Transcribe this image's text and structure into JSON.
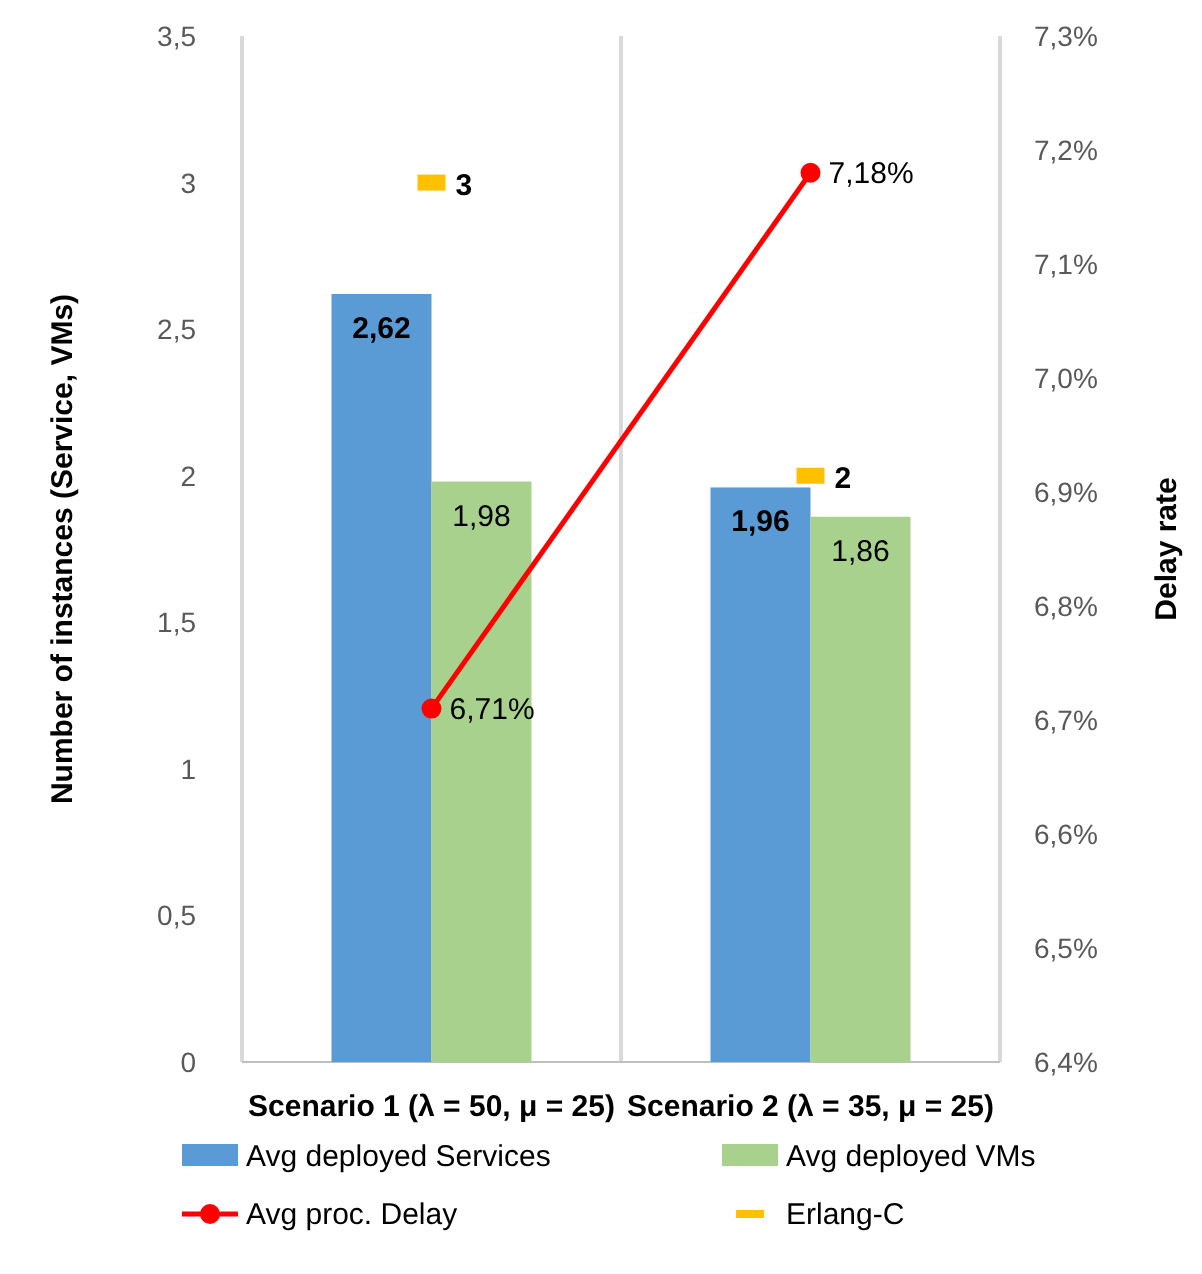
{
  "chart_data": {
    "type": "bar",
    "categories": [
      "Scenario 1 (λ = 50, μ = 25)",
      "Scenario 2 (λ = 35, μ = 25)"
    ],
    "ylabel": "Number of instances (Service, VMs)",
    "y2label": "Delay rate",
    "series": [
      {
        "name": "Avg deployed Services",
        "color": "#5b9bd5",
        "values": [
          2.62,
          1.96
        ],
        "value_labels": [
          "2,62",
          "1,96"
        ]
      },
      {
        "name": "Avg deployed VMs",
        "color": "#a9d18e",
        "values": [
          1.98,
          1.86
        ],
        "value_labels": [
          "1,98",
          "1,86"
        ]
      },
      {
        "name": "Avg proc. Delay",
        "type": "line",
        "axis": "y2",
        "color": "#ff0000",
        "marker": "circle",
        "values": [
          6.71,
          7.18
        ],
        "value_labels": [
          "6,71%",
          "7,18%"
        ]
      },
      {
        "name": "Erlang-C",
        "type": "scatter",
        "color": "#ffc000",
        "values": [
          3,
          2
        ],
        "value_labels": [
          "3",
          "2"
        ]
      }
    ],
    "ylim": [
      0,
      3.5
    ],
    "yticks": [
      0,
      {
        "value": 0.5,
        "label": "0,5"
      },
      1,
      {
        "value": 1.5,
        "label": "1,5"
      },
      2,
      {
        "value": 2.5,
        "label": "2,5"
      },
      3,
      {
        "value": 3.5,
        "label": "3,5"
      }
    ],
    "y2lim": [
      6.4,
      7.3
    ],
    "y2ticks": [
      {
        "value": 6.4,
        "label": "6,4%"
      },
      {
        "value": 6.5,
        "label": "6,5%"
      },
      {
        "value": 6.6,
        "label": "6,6%"
      },
      {
        "value": 6.7,
        "label": "6,7%"
      },
      {
        "value": 6.8,
        "label": "6,8%"
      },
      {
        "value": 6.9,
        "label": "6,9%"
      },
      {
        "value": 7.0,
        "label": "7,0%"
      },
      {
        "value": 7.1,
        "label": "7,1%"
      },
      {
        "value": 7.2,
        "label": "7,2%"
      },
      {
        "value": 7.3,
        "label": "7,3%"
      }
    ],
    "grid": "x",
    "legend": "bottom"
  }
}
